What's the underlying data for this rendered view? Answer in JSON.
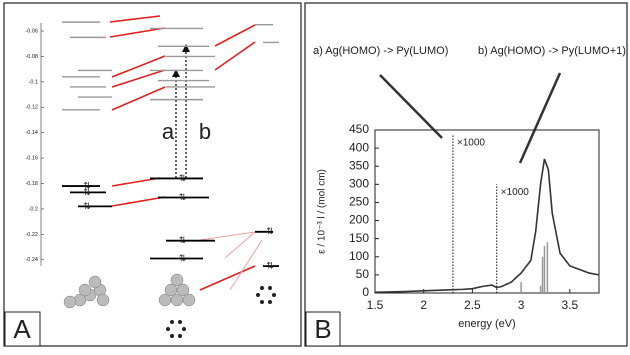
{
  "chart_data": [
    {
      "type": "levels",
      "panel_label": "A",
      "ylim": [
        -0.3,
        -0.04
      ],
      "yticks": [
        -0.06,
        -0.08,
        -0.1,
        -0.12,
        -0.14,
        -0.16,
        -0.18,
        -0.2,
        -0.22,
        -0.24
      ],
      "unoccupied_color": "#999999",
      "occupied_color": "#000000",
      "columns": [
        {
          "unoccupied": [
            -0.053,
            -0.065,
            -0.091,
            -0.096,
            -0.104,
            -0.112,
            -0.122
          ],
          "occupied": [
            -0.182,
            -0.187,
            -0.198
          ]
        },
        {
          "unoccupied": [
            -0.058,
            -0.072,
            -0.08,
            -0.091,
            -0.099,
            -0.104,
            -0.114
          ],
          "occupied": [
            -0.176,
            -0.191,
            -0.225,
            -0.239
          ]
        },
        {
          "unoccupied": [
            -0.055,
            -0.069
          ],
          "occupied": [
            -0.218,
            -0.245
          ]
        }
      ],
      "annotations": [
        "a",
        "b"
      ]
    },
    {
      "type": "line",
      "panel_label": "B",
      "x_label": "energy (eV)",
      "y_label": "ε / 10⁻³ l / (mol cm)",
      "xlim": [
        1.5,
        3.8
      ],
      "xticks": [
        1.5,
        2,
        2.5,
        3,
        3.5
      ],
      "ylim": [
        0,
        450
      ],
      "yticks": [
        0,
        50,
        100,
        150,
        200,
        250,
        300,
        350,
        400,
        450
      ],
      "color": "#333333",
      "x": [
        1.5,
        1.8,
        2.0,
        2.2,
        2.4,
        2.5,
        2.6,
        2.7,
        2.75,
        2.8,
        2.9,
        3.0,
        3.1,
        3.15,
        3.2,
        3.24,
        3.28,
        3.32,
        3.4,
        3.5,
        3.6,
        3.7,
        3.8
      ],
      "values": [
        2,
        4,
        6,
        8,
        10,
        12,
        18,
        22,
        15,
        18,
        30,
        55,
        90,
        170,
        300,
        370,
        340,
        220,
        110,
        75,
        65,
        55,
        50
      ],
      "sticks": {
        "color": "#999999",
        "x": [
          3.0,
          3.2,
          3.22,
          3.24,
          3.27
        ],
        "values": [
          30,
          20,
          100,
          130,
          140
        ]
      },
      "transitions": {
        "x": [
          2.3,
          2.75
        ],
        "values": [
          437,
          300
        ],
        "labels": [
          "×1000",
          "×1000"
        ]
      },
      "annotations": [
        "a) Ag(HOMO) -> Py(LUMO)",
        "b) Ag(HOMO) -> Py(LUMO+1)"
      ]
    }
  ]
}
